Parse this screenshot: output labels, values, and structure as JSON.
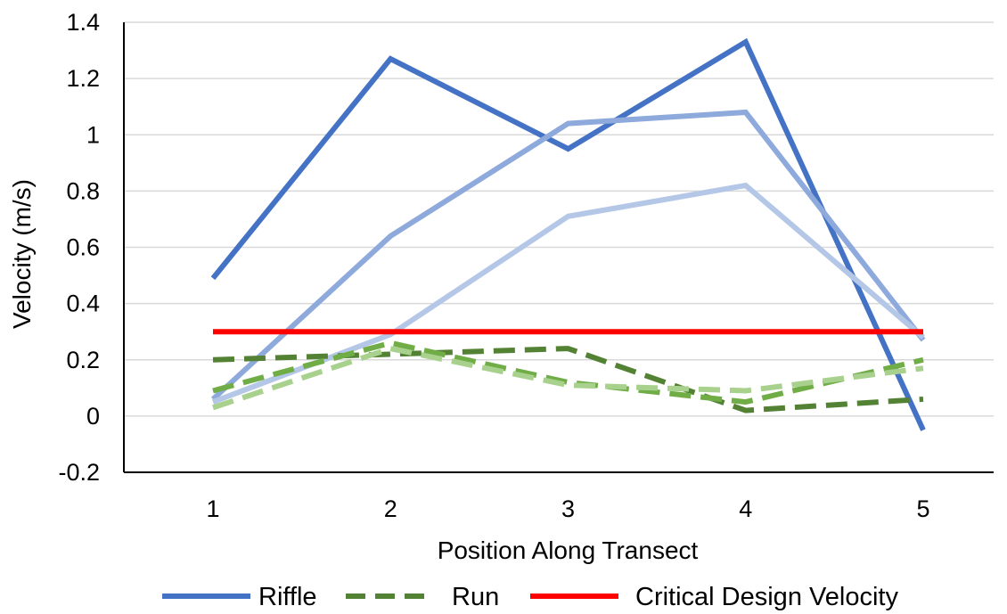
{
  "chart_data": {
    "type": "line",
    "xlabel": "Position Along Transect",
    "ylabel": "Velocity (m/s)",
    "categories": [
      "1",
      "2",
      "3",
      "4",
      "5"
    ],
    "ylim": [
      -0.2,
      1.4
    ],
    "yticks": [
      -0.2,
      0,
      0.2,
      0.4,
      0.6,
      0.8,
      1,
      1.2,
      1.4
    ],
    "ytick_labels": [
      "-0.2",
      "0",
      "0.2",
      "0.4",
      "0.6",
      "0.8",
      "1",
      "1.2",
      "1.4"
    ],
    "grid": "horizontal",
    "legend_position": "bottom",
    "series": [
      {
        "name": "Riffle",
        "color": "#4472c4",
        "style": "solid",
        "values": [
          0.49,
          1.27,
          0.95,
          1.33,
          -0.05
        ]
      },
      {
        "color": "#8ea9db",
        "style": "solid",
        "values": [
          0.06,
          0.64,
          1.04,
          1.08,
          0.27
        ]
      },
      {
        "color": "#b4c7e7",
        "style": "solid",
        "values": [
          0.05,
          0.29,
          0.71,
          0.82,
          0.28
        ]
      },
      {
        "name": "Run",
        "color": "#548235",
        "style": "dashed",
        "values": [
          0.2,
          0.22,
          0.24,
          0.02,
          0.06
        ]
      },
      {
        "color": "#70ad47",
        "style": "dashed",
        "values": [
          0.09,
          0.26,
          0.12,
          0.05,
          0.2
        ]
      },
      {
        "color": "#a9d18e",
        "style": "dashed",
        "values": [
          0.03,
          0.24,
          0.11,
          0.09,
          0.17
        ]
      },
      {
        "name": "Critical Design Velocity",
        "color": "#ff0000",
        "style": "solid",
        "values": [
          0.3,
          0.3,
          0.3,
          0.3,
          0.3
        ]
      }
    ],
    "legend": [
      {
        "label": "Riffle",
        "color": "#4472c4",
        "style": "solid"
      },
      {
        "label": "Run",
        "color": "#548235",
        "style": "dashed"
      },
      {
        "label": "Critical Design Velocity",
        "color": "#ff0000",
        "style": "solid"
      }
    ]
  }
}
